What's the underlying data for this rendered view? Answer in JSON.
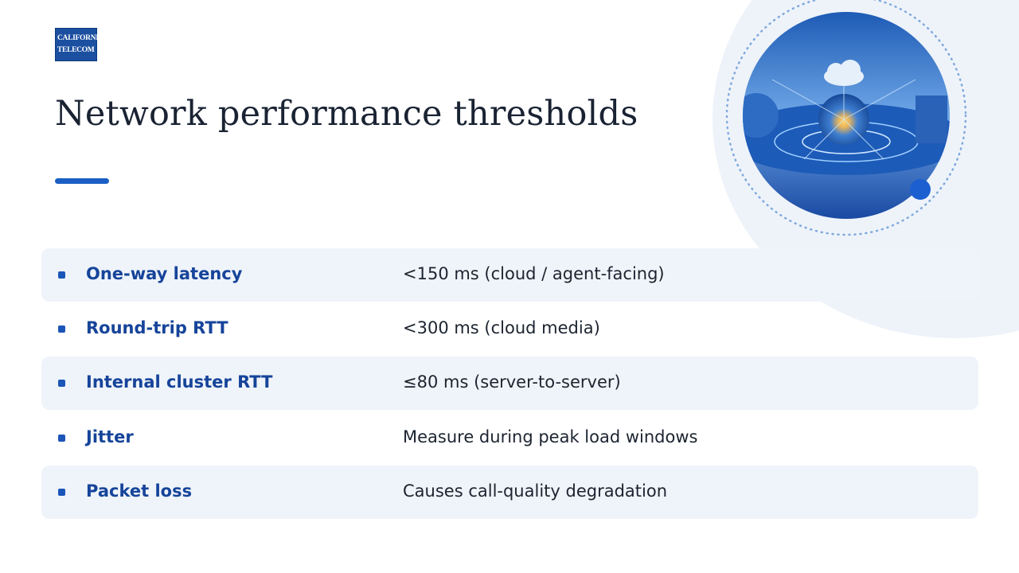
{
  "logo": {
    "line1": "CALIFORNIA",
    "line2": "TELECOM"
  },
  "title": "Network performance thresholds",
  "table": {
    "rows": [
      [
        "One-way latency",
        "<150 ms (cloud / agent-facing)"
      ],
      [
        "Round-trip RTT",
        "<300 ms (cloud media)"
      ],
      [
        "Internal cluster RTT",
        "≤80 ms (server-to-server)"
      ],
      [
        "Jitter",
        "Measure during peak load windows"
      ],
      [
        "Packet loss",
        "Causes call-quality degradation"
      ]
    ]
  }
}
